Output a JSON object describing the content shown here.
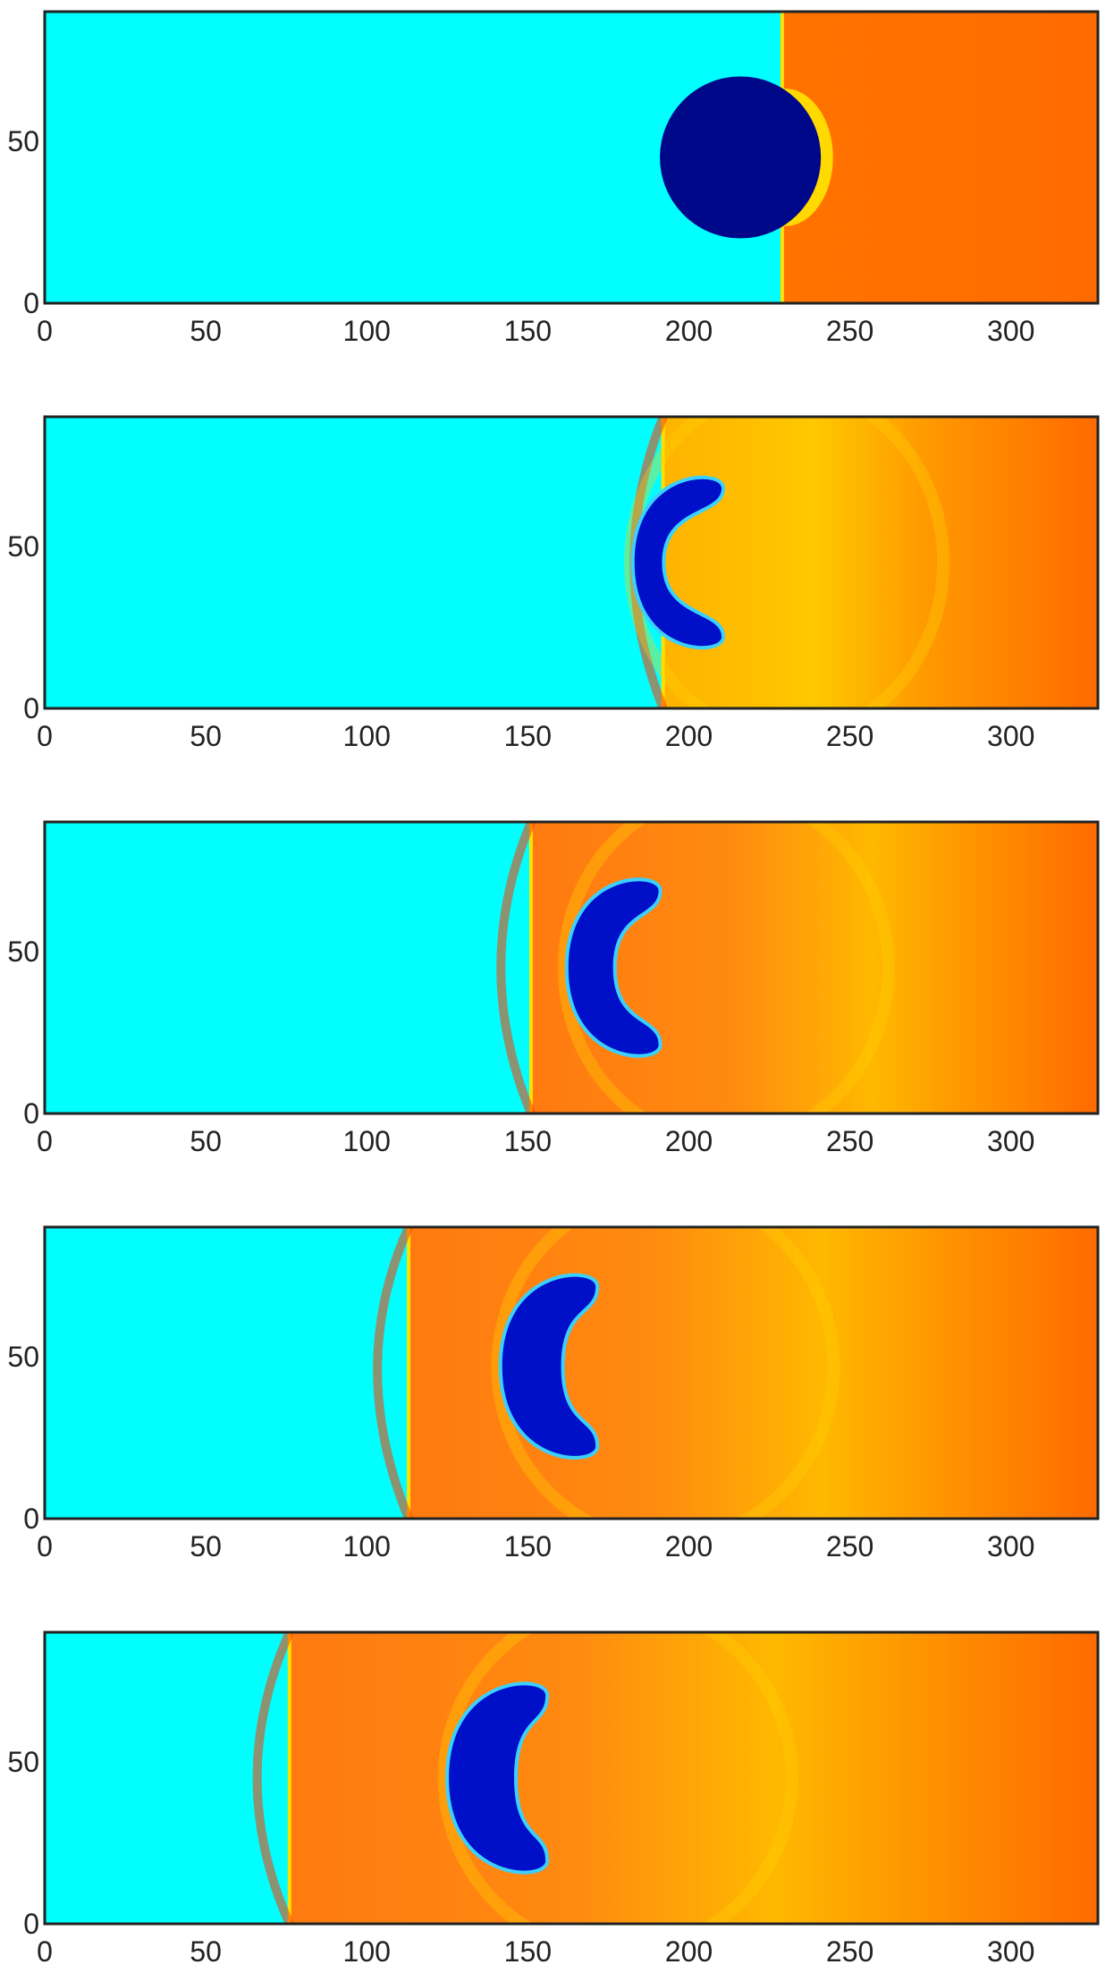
{
  "chart_data": [
    {
      "type": "heatmap",
      "xlim": [
        0,
        327
      ],
      "ylim": [
        0,
        90
      ],
      "xticks": [
        "0",
        "50",
        "100",
        "150",
        "200",
        "250",
        "300"
      ],
      "yticks": [
        "0",
        "50"
      ],
      "shock_x": 229,
      "bubble": {
        "center_x": 216,
        "center_y": 45,
        "radius": 25,
        "shape": "circle"
      },
      "colors": {
        "pre_shock": "#00ffff",
        "post_shock": "#ff6a00",
        "bubble": "#00088a",
        "frame": "#222222"
      }
    },
    {
      "type": "heatmap",
      "xlim": [
        0,
        327
      ],
      "ylim": [
        0,
        90
      ],
      "xticks": [
        "0",
        "50",
        "100",
        "150",
        "200",
        "250",
        "300"
      ],
      "yticks": [
        "0",
        "50"
      ],
      "shock_x": 192,
      "bubble": {
        "center_x": 198,
        "center_y": 45,
        "radius": 27,
        "shape": "kidney"
      },
      "colors": {
        "pre_shock": "#00ffff",
        "post_shock": "#ff6a00",
        "bubble": "#0010c8",
        "frame": "#222222"
      }
    },
    {
      "type": "heatmap",
      "xlim": [
        0,
        327
      ],
      "ylim": [
        0,
        90
      ],
      "xticks": [
        "0",
        "50",
        "100",
        "150",
        "200",
        "250",
        "300"
      ],
      "yticks": [
        "0",
        "50"
      ],
      "shock_x": 151,
      "bubble": {
        "center_x": 178,
        "center_y": 45,
        "radius": 28,
        "shape": "crescent"
      },
      "colors": {
        "pre_shock": "#00ffff",
        "post_shock": "#ff6a00",
        "bubble": "#0010c8",
        "frame": "#222222"
      }
    },
    {
      "type": "heatmap",
      "xlim": [
        0,
        327
      ],
      "ylim": [
        0,
        90
      ],
      "xticks": [
        "0",
        "50",
        "100",
        "150",
        "200",
        "250",
        "300"
      ],
      "yticks": [
        "0",
        "50"
      ],
      "shock_x": 113,
      "bubble": {
        "center_x": 158,
        "center_y": 47,
        "radius": 29,
        "shape": "c-shape"
      },
      "colors": {
        "pre_shock": "#00ffff",
        "post_shock": "#ff6a00",
        "bubble": "#0010c8",
        "frame": "#222222"
      }
    },
    {
      "type": "heatmap",
      "xlim": [
        0,
        327
      ],
      "ylim": [
        0,
        90
      ],
      "xticks": [
        "0",
        "50",
        "100",
        "150",
        "200",
        "250",
        "300"
      ],
      "yticks": [
        "0",
        "50"
      ],
      "shock_x": 76,
      "bubble": {
        "center_x": 142,
        "center_y": 45,
        "radius": 30,
        "shape": "c-shape-rolled"
      },
      "colors": {
        "pre_shock": "#00ffff",
        "post_shock": "#ff6a00",
        "bubble": "#0010c8",
        "frame": "#222222"
      }
    }
  ]
}
